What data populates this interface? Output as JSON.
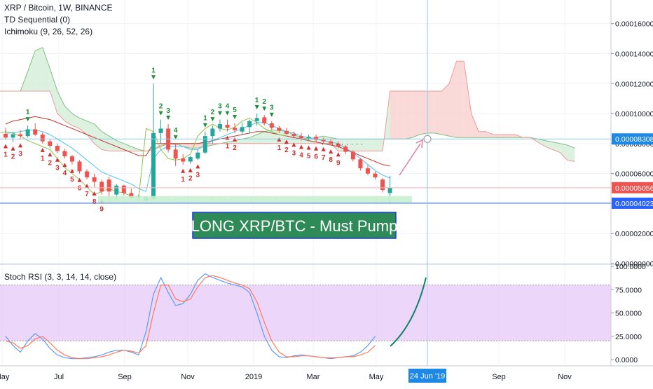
{
  "header": {
    "symbol_line": "XRP / Bitcoin, 1W, BINANCE",
    "indicator_td": "TD Sequential (0)",
    "indicator_ichimoku": "Ichimoku (9, 26, 52, 26)",
    "indicator_stoch": "Stoch RSI (3, 3, 14, 14, close)"
  },
  "annotation": {
    "banner_text": "LONG XRP/BTC - Must Pump",
    "banner_bg": "#2e8b57",
    "banner_border": "#1a3ad8"
  },
  "colors": {
    "up": "#26a69a",
    "down": "#ef5350",
    "cloud_red": "#f9d2d2",
    "cloud_green": "#d7efdb",
    "rsi_band": "#e6c8f7",
    "crosshair": "#8fc9e6",
    "price_line_blue": "#2962ff",
    "price_line_red": "#ef5350",
    "arrow_pink": "#e27aa0",
    "curve_green": "#11826a"
  },
  "chart_data": [
    {
      "type": "candlestick",
      "title": "XRP / Bitcoin, 1W, BINANCE",
      "y_axis": {
        "ticks": [
          "0.00016000",
          "0.00014000",
          "0.00012000",
          "0.00010000",
          "0.00008000",
          "0.00006000",
          "0.00004000",
          "0.00002000",
          "0.00000000"
        ],
        "range": [
          0.0,
          0.000172
        ]
      },
      "price_labels": [
        {
          "text": "0.00008308",
          "color": "#1e88e5"
        },
        {
          "text": "0.00005056",
          "color": "#ef5350"
        },
        {
          "text": "0.00004023",
          "color": "#2962ff"
        }
      ],
      "x_axis": {
        "ticks": [
          "May",
          "Jul",
          "Sep",
          "Nov",
          "2019",
          "Mar",
          "May",
          "Sep",
          "Nov"
        ],
        "crosshair_label": "24 Jun '19"
      },
      "candles": [
        {
          "o": 8.65e-05,
          "h": 9.05e-05,
          "l": 8.25e-05,
          "c": 8.4e-05
        },
        {
          "o": 8.4e-05,
          "h": 8.8e-05,
          "l": 8.1e-05,
          "c": 8.62e-05
        },
        {
          "o": 8.62e-05,
          "h": 8.9e-05,
          "l": 8.3e-05,
          "c": 8.5e-05
        },
        {
          "o": 8.5e-05,
          "h": 9.2e-05,
          "l": 8.4e-05,
          "c": 8.95e-05
        },
        {
          "o": 8.95e-05,
          "h": 9.35e-05,
          "l": 8.5e-05,
          "c": 8.6e-05
        },
        {
          "o": 8.6e-05,
          "h": 8.75e-05,
          "l": 8e-05,
          "c": 8.15e-05
        },
        {
          "o": 8.15e-05,
          "h": 8.3e-05,
          "l": 7.7e-05,
          "c": 7.85e-05
        },
        {
          "o": 7.85e-05,
          "h": 8e-05,
          "l": 7.35e-05,
          "c": 7.5e-05
        },
        {
          "o": 7.5e-05,
          "h": 7.65e-05,
          "l": 7e-05,
          "c": 7.15e-05
        },
        {
          "o": 7.15e-05,
          "h": 7.25e-05,
          "l": 6.6e-05,
          "c": 6.8e-05
        },
        {
          "o": 6.8e-05,
          "h": 6.9e-05,
          "l": 6e-05,
          "c": 6.15e-05
        },
        {
          "o": 6.15e-05,
          "h": 6.3e-05,
          "l": 5.6e-05,
          "c": 5.75e-05
        },
        {
          "o": 5.75e-05,
          "h": 6e-05,
          "l": 5.1e-05,
          "c": 5.45e-05
        },
        {
          "o": 5.45e-05,
          "h": 5.6e-05,
          "l": 4.6e-05,
          "c": 4.8e-05
        },
        {
          "o": 5.6e-05,
          "h": 5.8e-05,
          "l": 4.05e-05,
          "c": 4.8e-05
        },
        {
          "o": 4.6e-05,
          "h": 5.3e-05,
          "l": 4.2e-05,
          "c": 5.2e-05
        },
        {
          "o": 5.2e-05,
          "h": 5.25e-05,
          "l": 4.55e-05,
          "c": 4.7e-05
        },
        {
          "o": 4.7e-05,
          "h": 5e-05,
          "l": 4.3e-05,
          "c": 4.4e-05
        },
        {
          "o": 4.4e-05,
          "h": 4.6e-05,
          "l": 4.15e-05,
          "c": 4.5e-05
        },
        {
          "o": 4.2e-05,
          "h": 4.5e-05,
          "l": 4.05e-05,
          "c": 4.4e-05
        },
        {
          "o": 4.3e-05,
          "h": 0.00012,
          "l": 4.25e-05,
          "c": 8.7e-05
        },
        {
          "o": 8.7e-05,
          "h": 9.6e-05,
          "l": 8e-05,
          "c": 9e-05
        },
        {
          "o": 9e-05,
          "h": 9.3e-05,
          "l": 7.4e-05,
          "c": 7.6e-05
        },
        {
          "o": 7.6e-05,
          "h": 8e-05,
          "l": 6.5e-05,
          "c": 7e-05
        },
        {
          "o": 7e-05,
          "h": 7.3e-05,
          "l": 6.6e-05,
          "c": 6.8e-05
        },
        {
          "o": 6.8e-05,
          "h": 7.2e-05,
          "l": 6.65e-05,
          "c": 7.1e-05
        },
        {
          "o": 7e-05,
          "h": 7.6e-05,
          "l": 6.9e-05,
          "c": 7.4e-05
        },
        {
          "o": 7.4e-05,
          "h": 8.8e-05,
          "l": 7.3e-05,
          "c": 8.5e-05
        },
        {
          "o": 8.5e-05,
          "h": 9.2e-05,
          "l": 8e-05,
          "c": 9e-05
        },
        {
          "o": 9e-05,
          "h": 9.6e-05,
          "l": 8.8e-05,
          "c": 9.3e-05
        },
        {
          "o": 9.25e-05,
          "h": 9.6e-05,
          "l": 8.8e-05,
          "c": 9.05e-05
        },
        {
          "o": 9.05e-05,
          "h": 9.35e-05,
          "l": 8.7e-05,
          "c": 8.9e-05
        },
        {
          "o": 8.8e-05,
          "h": 9.4e-05,
          "l": 8.6e-05,
          "c": 9.1e-05
        },
        {
          "o": 9.1e-05,
          "h": 9.6e-05,
          "l": 8.7e-05,
          "c": 9.5e-05
        },
        {
          "o": 9.5e-05,
          "h": 0.0001,
          "l": 9.2e-05,
          "c": 9.7e-05
        },
        {
          "o": 9.75e-05,
          "h": 9.9e-05,
          "l": 9.2e-05,
          "c": 9.35e-05
        },
        {
          "o": 9.35e-05,
          "h": 9.5e-05,
          "l": 8.9e-05,
          "c": 9.05e-05
        },
        {
          "o": 9.05e-05,
          "h": 9.2e-05,
          "l": 8.7e-05,
          "c": 8.85e-05
        },
        {
          "o": 8.85e-05,
          "h": 9.05e-05,
          "l": 8.55e-05,
          "c": 8.65e-05
        },
        {
          "o": 8.65e-05,
          "h": 8.8e-05,
          "l": 8.35e-05,
          "c": 8.5e-05
        },
        {
          "o": 8.5e-05,
          "h": 8.7e-05,
          "l": 8.2e-05,
          "c": 8.35e-05
        },
        {
          "o": 8.35e-05,
          "h": 8.6e-05,
          "l": 8.15e-05,
          "c": 8.45e-05
        },
        {
          "o": 8.45e-05,
          "h": 8.6e-05,
          "l": 8.1e-05,
          "c": 8.25e-05
        },
        {
          "o": 8.25e-05,
          "h": 8.4e-05,
          "l": 8.05e-05,
          "c": 8.15e-05
        },
        {
          "o": 8.15e-05,
          "h": 8.3e-05,
          "l": 7.9e-05,
          "c": 8e-05
        },
        {
          "o": 8e-05,
          "h": 8.15e-05,
          "l": 7.7e-05,
          "c": 7.8e-05
        },
        {
          "o": 7.8e-05,
          "h": 7.9e-05,
          "l": 7.3e-05,
          "c": 7.45e-05
        },
        {
          "o": 7.45e-05,
          "h": 7.55e-05,
          "l": 6.8e-05,
          "c": 6.95e-05
        },
        {
          "o": 6.95e-05,
          "h": 7.05e-05,
          "l": 6.2e-05,
          "c": 6.35e-05
        },
        {
          "o": 6.35e-05,
          "h": 6.55e-05,
          "l": 5.9e-05,
          "c": 6e-05
        },
        {
          "o": 6e-05,
          "h": 6.15e-05,
          "l": 5.6e-05,
          "c": 5.75e-05
        },
        {
          "o": 5.6e-05,
          "h": 5.7e-05,
          "l": 4.75e-05,
          "c": 4.9e-05
        },
        {
          "o": 4.7e-05,
          "h": 5.85e-05,
          "l": 4e-05,
          "c": 5.05e-05
        }
      ],
      "td_setup_numbers": [
        {
          "bar": 3,
          "text": "1",
          "dir": "buy"
        },
        {
          "bar": 0,
          "text": "1",
          "dir": "sell"
        },
        {
          "bar": 1,
          "text": "2",
          "dir": "sell"
        },
        {
          "bar": 2,
          "text": "3",
          "dir": "sell"
        },
        {
          "bar": 5,
          "text": "1",
          "dir": "sell"
        },
        {
          "bar": 6,
          "text": "2",
          "dir": "sell"
        },
        {
          "bar": 7,
          "text": "3",
          "dir": "sell"
        },
        {
          "bar": 8,
          "text": "4",
          "dir": "sell"
        },
        {
          "bar": 9,
          "text": "5",
          "dir": "sell"
        },
        {
          "bar": 10,
          "text": "6",
          "dir": "sell"
        },
        {
          "bar": 11,
          "text": "7",
          "dir": "sell"
        },
        {
          "bar": 12,
          "text": "8",
          "dir": "sell"
        },
        {
          "bar": 13,
          "text": "9",
          "dir": "sell"
        },
        {
          "bar": 20,
          "text": "1",
          "dir": "buy"
        },
        {
          "bar": 21,
          "text": "2",
          "dir": "buy"
        },
        {
          "bar": 22,
          "text": "3",
          "dir": "buy"
        },
        {
          "bar": 23,
          "text": "4",
          "dir": "buy"
        },
        {
          "bar": 24,
          "text": "1",
          "dir": "sell"
        },
        {
          "bar": 25,
          "text": "2",
          "dir": "sell"
        },
        {
          "bar": 26,
          "text": "3",
          "dir": "sell"
        },
        {
          "bar": 27,
          "text": "1",
          "dir": "buy"
        },
        {
          "bar": 28,
          "text": "2",
          "dir": "buy"
        },
        {
          "bar": 29,
          "text": "3",
          "dir": "buy"
        },
        {
          "bar": 30,
          "text": "4",
          "dir": "buy"
        },
        {
          "bar": 31,
          "text": "5",
          "dir": "buy"
        },
        {
          "bar": 30,
          "text": "1",
          "dir": "sell"
        },
        {
          "bar": 31,
          "text": "2",
          "dir": "sell"
        },
        {
          "bar": 34,
          "text": "1",
          "dir": "buy"
        },
        {
          "bar": 35,
          "text": "2",
          "dir": "buy"
        },
        {
          "bar": 36,
          "text": "3",
          "dir": "buy"
        },
        {
          "bar": 37,
          "text": "1",
          "dir": "sell"
        },
        {
          "bar": 38,
          "text": "2",
          "dir": "sell"
        },
        {
          "bar": 39,
          "text": "3",
          "dir": "sell"
        },
        {
          "bar": 40,
          "text": "4",
          "dir": "sell"
        },
        {
          "bar": 41,
          "text": "5",
          "dir": "sell"
        },
        {
          "bar": 42,
          "text": "6",
          "dir": "sell"
        },
        {
          "bar": 43,
          "text": "7",
          "dir": "sell"
        },
        {
          "bar": 44,
          "text": "8",
          "dir": "sell"
        },
        {
          "bar": 45,
          "text": "9",
          "dir": "sell"
        }
      ],
      "ichimoku": {
        "tenkan": [
          8.7e-05,
          8.7e-05,
          8.8e-05,
          8.9e-05,
          8.9e-05,
          8.8e-05,
          8.6e-05,
          8.3e-05,
          8e-05,
          7.7e-05,
          7.3e-05,
          6.9e-05,
          6.5e-05,
          6.1e-05,
          5.9e-05,
          5.7e-05,
          5.5e-05,
          5.3e-05,
          5e-05,
          4.8e-05,
          7e-05,
          7.6e-05,
          7.8e-05,
          7.8e-05,
          7.8e-05,
          7.6e-05,
          7.6e-05,
          7.9e-05,
          8.2e-05,
          8.4e-05,
          8.6e-05,
          8.8e-05,
          9e-05,
          9.2e-05,
          9.4e-05,
          9.4e-05,
          9.2e-05,
          9e-05,
          8.8e-05,
          8.7e-05,
          8.5e-05,
          8.4e-05,
          8.3e-05,
          8.2e-05,
          8.1e-05,
          8e-05,
          7.7e-05,
          7.4e-05,
          7e-05,
          6.6e-05,
          6.2e-05,
          5.9e-05,
          5.7e-05
        ],
        "kijun": [
          9.3e-05,
          9.5e-05,
          9.6e-05,
          9.7e-05,
          9.8e-05,
          9.7e-05,
          9.6e-05,
          9.4e-05,
          9.2e-05,
          9e-05,
          8.8e-05,
          8.6e-05,
          8.4e-05,
          8.2e-05,
          8e-05,
          7.8e-05,
          7.6e-05,
          7.4e-05,
          7.2e-05,
          7.2e-05,
          8e-05,
          8e-05,
          8e-05,
          8e-05,
          8e-05,
          8e-05,
          8e-05,
          8.1e-05,
          8.2e-05,
          8.3e-05,
          8.4e-05,
          8.5e-05,
          8.6e-05,
          8.7e-05,
          8.8e-05,
          8.8e-05,
          8.7e-05,
          8.6e-05,
          8.5e-05,
          8.4e-05,
          8.3e-05,
          8.2e-05,
          8.1e-05,
          8e-05,
          7.9e-05,
          7.8e-05,
          7.6e-05,
          7.4e-05,
          7.2e-05,
          7e-05,
          6.8e-05,
          6.6e-05,
          6.5e-05
        ],
        "chikou": [
          8.7e-05,
          8.8e-05,
          8.7e-05,
          8.5e-05,
          8.2e-05,
          8e-05,
          7.8e-05,
          7.6e-05,
          7e-05,
          6.4e-05,
          6e-05,
          5.6e-05,
          5.1e-05,
          4.6e-05,
          4.8e-05,
          5e-05,
          4.8e-05,
          4.7e-05,
          4.5e-05,
          4.4e-05,
          9e-05,
          8.8e-05,
          7.6e-05,
          7e-05,
          6.9e-05,
          7e-05,
          7.3e-05,
          8.5e-05,
          9e-05,
          9.3e-05,
          9e-05,
          8.9e-05,
          9.1e-05,
          9.5e-05,
          9.7e-05,
          9.4e-05,
          9e-05,
          8.8e-05,
          8.6e-05,
          8.5e-05
        ],
        "span_a": [
          0.000115,
          0.000115,
          0.000115,
          0.000115,
          0.000128,
          0.000142,
          0.000144,
          0.00013,
          0.000115,
          0.000105,
          0.0001,
          9.7e-05,
          9.5e-05,
          9.3e-05,
          8.8e-05,
          8.5e-05,
          8.2e-05,
          8e-05,
          7.8e-05,
          7.6e-05,
          7.5e-05,
          7.6e-05,
          7.8e-05,
          8e-05,
          8e-05,
          7.8e-05,
          7.7e-05,
          7.7e-05,
          7.8e-05,
          7.9e-05,
          8e-05,
          8.1e-05,
          8.2e-05,
          8.3e-05,
          8.4e-05,
          8.6e-05,
          8.8e-05,
          8.9e-05,
          8.9e-05,
          8.8e-05,
          8.6e-05,
          8.4e-05,
          8.3e-05,
          8.4e-05,
          8.5e-05,
          8.4e-05,
          8.3e-05,
          8.3e-05,
          8.3e-05,
          8.3e-05,
          8.3e-05,
          8.3e-05,
          8.3e-05,
          8.3e-05,
          8.3e-05,
          8.3e-05,
          8.4e-05,
          8.6e-05,
          8.7e-05,
          8.7e-05,
          8.6e-05,
          8.5e-05,
          8.4e-05,
          8.4e-05,
          8.4e-05,
          8.4e-05,
          8.4e-05,
          8.4e-05,
          8.4e-05,
          8.4e-05,
          8.4e-05,
          8.4e-05,
          8.4e-05,
          8.3e-05,
          8.2e-05,
          8.1e-05,
          8e-05,
          7.9e-05,
          7.7e-05
        ],
        "span_b": [
          0.000115,
          0.000115,
          0.000115,
          0.000115,
          0.000115,
          0.000115,
          0.000115,
          0.000115,
          0.0001,
          9.5e-05,
          9.2e-05,
          9e-05,
          8.6e-05,
          8e-05,
          7.6e-05,
          7.5e-05,
          7.5e-05,
          7.5e-05,
          7.5e-05,
          7.5e-05,
          7.5e-05,
          7.6e-05,
          7.9e-05,
          8e-05,
          7.9e-05,
          8e-05,
          8e-05,
          8e-05,
          8e-05,
          8e-05,
          8e-05,
          8e-05,
          8e-05,
          8e-05,
          8e-05,
          8e-05,
          8e-05,
          8e-05,
          8e-05,
          8e-05,
          8e-05,
          8e-05,
          8e-05,
          8e-05,
          8e-05,
          8e-05,
          7.5e-05,
          7.5e-05,
          7.5e-05,
          7.5e-05,
          7.5e-05,
          7.5e-05,
          7.5e-05,
          0.000115,
          0.000115,
          0.000115,
          0.000115,
          0.000115,
          0.000115,
          0.000115,
          0.000115,
          0.00012,
          0.000135,
          0.000135,
          0.0001,
          8.8e-05,
          8.8e-05,
          8.6e-05,
          8.6e-05,
          8.6e-05,
          8.6e-05,
          8.4e-05,
          8.4e-05,
          8.1e-05,
          7.8e-05,
          7.6e-05,
          7.4e-05,
          6.9e-05,
          6.8e-05
        ]
      }
    },
    {
      "type": "line",
      "title": "Stoch RSI (3, 3, 14, 14, close)",
      "y_axis": {
        "ticks": [
          "100.0000",
          "75.0000",
          "50.0000",
          "25.0000",
          "0.0000"
        ],
        "range": [
          0,
          100
        ],
        "band": [
          20,
          80
        ]
      },
      "series": [
        {
          "name": "K",
          "color": "#5b9cf6",
          "values": [
            25,
            15,
            8,
            20,
            28,
            22,
            12,
            5,
            2,
            1,
            1,
            2,
            3,
            5,
            8,
            10,
            10,
            8,
            5,
            30,
            70,
            88,
            72,
            58,
            60,
            70,
            85,
            92,
            88,
            85,
            82,
            80,
            78,
            72,
            50,
            25,
            10,
            3,
            2,
            4,
            5,
            4,
            3,
            2,
            1,
            2,
            3,
            4,
            8,
            15,
            25
          ]
        },
        {
          "name": "D",
          "color": "#ff7a5a",
          "values": [
            20,
            18,
            12,
            15,
            22,
            25,
            18,
            10,
            5,
            2,
            1,
            1,
            2,
            3,
            5,
            8,
            10,
            9,
            7,
            15,
            50,
            80,
            80,
            65,
            62,
            65,
            78,
            88,
            90,
            88,
            85,
            82,
            80,
            76,
            62,
            40,
            20,
            8,
            3,
            3,
            4,
            4,
            3,
            2,
            2,
            2,
            3,
            3,
            5,
            8,
            15
          ]
        }
      ]
    }
  ]
}
